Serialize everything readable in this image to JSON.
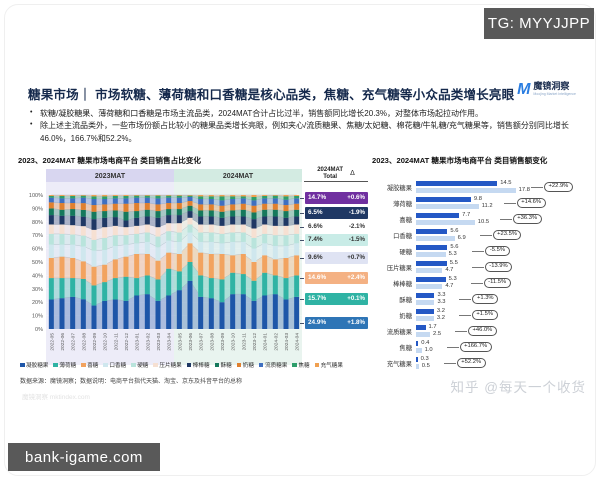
{
  "watermarks": {
    "tg": "TG: MYYJJPP",
    "bank": "bank-igame.com",
    "zhihu": "知乎 @每天一个收货",
    "faint_source": "魔镜洞察 mktindex.com"
  },
  "header": {
    "title": "糖果市场｜ 市场软糖、薄荷糖和口香糖是核心品类，焦糖、充气糖等小众品类增长亮眼",
    "logo_mark": "M",
    "logo_text": "魔镜洞察",
    "logo_sub": "Moojing Market Intelligence",
    "accent_color": "#2a7de1"
  },
  "bullets": [
    "软糖/凝胶糖果、薄荷糖和口香糖是市场主流品类，2024MAT合计占比过半，销售额同比增长20.3%，对整体市场起拉动作用。",
    "除上述主流品类外，一些市场份额占比较小的糖果品类增长亮眼，例如夹心/流质糖果、焦糖/太妃糖、棉花糖/牛轧糖/充气糖果等，销售额分别同比增长46.0%，166.7%和52.2%。"
  ],
  "left_chart": {
    "title": "2023、2024MAT 糖果市场电商平台 类目销售占比变化",
    "period_labels": [
      "2023MAT",
      "2024MAT"
    ],
    "total_header_line1": "2024MAT",
    "total_header_line2": "Total",
    "delta_header": "Δ",
    "y_ticks": [
      "100%",
      "90%",
      "80%",
      "70%",
      "60%",
      "50%",
      "40%",
      "30%",
      "20%",
      "10%",
      "0%"
    ],
    "chips": [
      {
        "share": "14.7%",
        "delta": "+0.6%",
        "bg": "#7030a0",
        "fg": "#ffffff",
        "maps_to": "其他(酥糖/奶糖/流质糖果/焦糖/充气糖果)"
      },
      {
        "share": "6.5%",
        "delta": "-1.9%",
        "bg": "#1f3864",
        "fg": "#ffffff",
        "maps_to": "棒棒糖"
      },
      {
        "share": "6.6%",
        "delta": "-2.1%",
        "bg": "transparent",
        "fg": "#333333",
        "maps_to": "压片糖果"
      },
      {
        "share": "7.4%",
        "delta": "-1.5%",
        "bg": "#c9ece7",
        "fg": "#333333",
        "maps_to": "硬糖"
      },
      {
        "share": "9.6%",
        "delta": "+0.7%",
        "bg": "#dfe3f3",
        "fg": "#333333",
        "maps_to": "口香糖"
      },
      {
        "share": "14.6%",
        "delta": "+2.4%",
        "bg": "#f4b183",
        "fg": "#ffffff",
        "maps_to": "喜糖"
      },
      {
        "share": "15.7%",
        "delta": "+0.1%",
        "bg": "#2fb3a4",
        "fg": "#ffffff",
        "maps_to": "薄荷糖"
      },
      {
        "share": "24.9%",
        "delta": "+1.8%",
        "bg": "#2e75b6",
        "fg": "#ffffff",
        "maps_to": "凝胶糖果"
      }
    ],
    "source": "数据来源：魔镜洞察；数据说明：电商平台指代天猫、淘宝、京东及抖音平台的总称"
  },
  "right_chart": {
    "title": "2023、2024MAT 糖果市场电商平台 类目销售额变化"
  },
  "chart_data": [
    {
      "type": "area",
      "title": "2023、2024MAT 糖果市场电商平台 类目销售占比变化",
      "xlabel": "月份",
      "ylabel": "销售占比",
      "ylim": [
        0,
        100
      ],
      "unit": "%",
      "grid": false,
      "x": [
        "2022-05",
        "2022-06",
        "2022-07",
        "2022-08",
        "2022-09",
        "2022-10",
        "2022-11",
        "2022-12",
        "2023-01",
        "2023-02",
        "2023-03",
        "2023-04",
        "2023-05",
        "2023-06",
        "2023-07",
        "2023-08",
        "2023-09",
        "2023-10",
        "2023-11",
        "2023-12",
        "2024-01",
        "2024-02",
        "2024-03",
        "2024-04"
      ],
      "series": [
        {
          "name": "凝胶糖果",
          "color": "#1e56a8",
          "share_2024MAT": 24.9,
          "share_delta": "+1.8%"
        },
        {
          "name": "薄荷糖",
          "color": "#2fb3a4",
          "share_2024MAT": 15.7,
          "share_delta": "+0.1%"
        },
        {
          "name": "喜糖",
          "color": "#f2a35f",
          "share_2024MAT": 14.6,
          "share_delta": "+2.4%"
        },
        {
          "name": "口香糖",
          "color": "#cfe7ee",
          "share_2024MAT": 9.6,
          "share_delta": "+0.7%"
        },
        {
          "name": "硬糖",
          "color": "#b9e4dc",
          "share_2024MAT": 7.4,
          "share_delta": "-1.5%"
        },
        {
          "name": "压片糖果",
          "color": "#f6e0d2",
          "share_2024MAT": 6.6,
          "share_delta": "-2.1%"
        },
        {
          "name": "棒棒糖",
          "color": "#1f3864",
          "share_2024MAT": 6.5,
          "share_delta": "-1.9%"
        },
        {
          "name": "酥糖",
          "color": "#15795c",
          "share_2024MAT": 4.6,
          "share_delta": ""
        },
        {
          "name": "奶糖",
          "color": "#e0802f",
          "share_2024MAT": 4.5,
          "share_delta": ""
        },
        {
          "name": "流质糖果",
          "color": "#3f6fc0",
          "share_2024MAT": 3.5,
          "share_delta": ""
        },
        {
          "name": "焦糖",
          "color": "#2e9e6b",
          "share_2024MAT": 1.4,
          "share_delta": ""
        },
        {
          "name": "充气糖果",
          "color": "#f0a050",
          "share_2024MAT": 0.7,
          "share_delta": ""
        }
      ],
      "monthly_shares": [
        [
          22,
          16,
          15,
          10,
          8,
          7,
          7,
          5,
          4.5,
          3.5,
          1.3,
          0.7
        ],
        [
          23,
          15,
          16,
          9,
          8,
          7,
          6.5,
          4.5,
          5,
          3.5,
          1.8,
          0.7
        ],
        [
          24,
          14,
          15,
          10,
          7.5,
          7,
          7,
          5,
          4.5,
          3.5,
          1.8,
          0.7
        ],
        [
          22,
          15,
          13,
          11,
          8,
          7,
          7,
          5,
          5,
          4,
          1.5,
          0.5
        ],
        [
          17.5,
          15,
          14,
          12,
          8,
          7.5,
          8,
          5.5,
          5,
          4.5,
          2,
          1
        ],
        [
          21,
          14,
          13,
          11,
          9,
          8,
          7,
          5,
          5,
          4,
          2,
          1
        ],
        [
          22,
          16,
          14,
          10,
          8,
          7,
          6.5,
          5,
          5,
          4,
          1.8,
          0.7
        ],
        [
          21,
          18,
          15,
          9,
          7,
          6,
          5,
          6.5,
          6,
          4,
          1.8,
          0.7
        ],
        [
          25,
          13,
          18,
          8,
          7,
          6,
          6,
          5,
          6,
          4,
          1.5,
          0.5
        ],
        [
          26,
          14,
          16,
          9,
          7,
          6,
          6,
          5,
          5,
          4,
          1.5,
          0.5
        ],
        [
          21,
          16,
          14,
          10,
          8,
          7,
          7,
          5,
          5,
          4.5,
          2,
          0.5
        ],
        [
          25,
          20,
          12,
          9,
          7,
          6,
          6,
          4.5,
          4.5,
          4,
          1.5,
          0.5
        ],
        [
          29,
          14,
          13,
          9,
          7,
          7,
          6,
          4.5,
          4.5,
          4,
          1.5,
          0.5
        ],
        [
          36,
          14,
          14,
          8,
          6,
          5,
          5,
          4,
          3.5,
          3,
          1,
          0.5
        ],
        [
          24,
          16,
          17,
          8,
          7,
          6,
          6,
          4.5,
          4.5,
          4,
          2,
          1
        ],
        [
          23,
          15,
          18,
          9,
          7,
          6,
          6,
          4.5,
          4.5,
          4,
          2,
          1
        ],
        [
          20,
          17,
          19,
          8,
          7,
          6,
          6,
          4.5,
          4.5,
          4,
          3,
          1
        ],
        [
          26,
          16,
          13,
          10,
          7,
          6,
          6,
          4.5,
          4.5,
          4,
          2,
          1
        ],
        [
          26,
          15,
          15,
          9,
          7,
          6,
          6,
          5,
          4.5,
          4,
          1.5,
          1
        ],
        [
          21,
          15,
          14,
          10,
          8,
          7,
          7,
          5,
          5,
          4,
          2.5,
          1.5
        ],
        [
          25,
          17,
          13,
          9,
          7,
          7,
          6,
          5,
          4.5,
          4,
          1.8,
          0.7
        ],
        [
          26,
          14,
          12,
          10,
          8,
          7,
          7,
          5,
          4.5,
          4,
          2,
          0.5
        ],
        [
          22,
          16,
          15,
          9,
          8,
          7,
          6,
          5,
          4.5,
          4,
          2.5,
          1
        ],
        [
          24,
          16,
          15,
          9,
          7,
          7,
          6,
          5,
          4.5,
          4,
          1.8,
          0.7
        ]
      ]
    },
    {
      "type": "bar",
      "title": "2023、2024MAT 糖果市场电商平台 类目销售额变化",
      "orientation": "horizontal",
      "categories": [
        "凝胶糖果",
        "薄荷糖",
        "喜糖",
        "口香糖",
        "硬糖",
        "压片糖果",
        "棒棒糖",
        "酥糖",
        "奶糖",
        "流质糖果",
        "焦糖",
        "充气糖果"
      ],
      "series": [
        {
          "name": "2023MAT",
          "color": "#2458c5",
          "values": [
            14.5,
            9.8,
            7.7,
            5.6,
            5.6,
            5.5,
            5.3,
            3.3,
            3.2,
            1.7,
            0.4,
            0.3
          ]
        },
        {
          "name": "2024MAT",
          "color": "#c5d9f1",
          "values": [
            17.8,
            11.2,
            10.5,
            6.9,
            5.3,
            4.7,
            4.7,
            3.3,
            3.2,
            2.5,
            1.0,
            0.5
          ]
        }
      ],
      "deltas": [
        "+22.9%",
        "+14.6%",
        "+36.3%",
        "+23.5%",
        "-5.5%",
        "-13.9%",
        "-11.5%",
        "+1.3%",
        "+1.5%",
        "+46.0%",
        "+166.7%",
        "+52.2%"
      ]
    }
  ]
}
